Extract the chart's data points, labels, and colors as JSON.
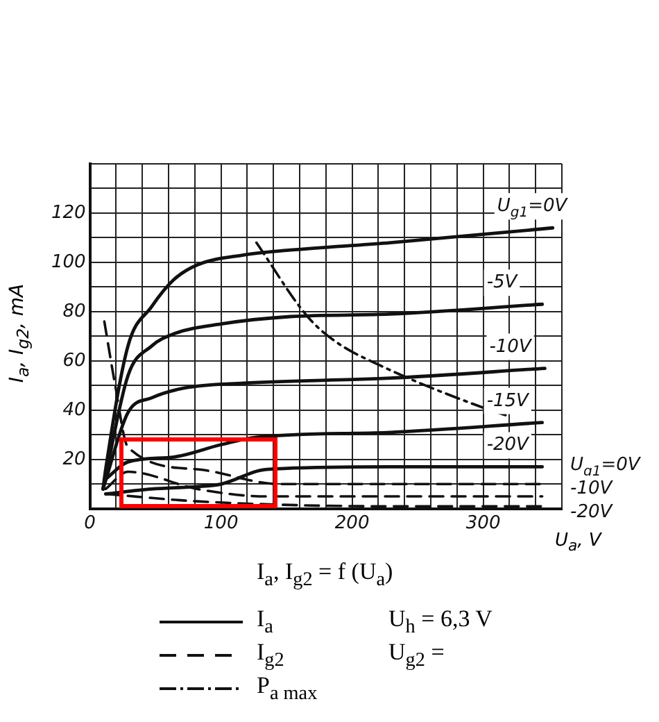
{
  "chart_data": {
    "type": "line",
    "xlabel": "U$_{a}$, V",
    "ylabel": "I$_{a}$, I$_{g2}$, mA",
    "xlim": [
      0,
      360
    ],
    "ylim": [
      0,
      140
    ],
    "xticks": [
      0,
      {
        "value": 20,
        "label": null
      },
      {
        "value": 40,
        "label": null
      },
      {
        "value": 60,
        "label": null
      },
      {
        "value": 80,
        "label": null
      },
      100,
      {
        "value": 120,
        "label": null
      },
      {
        "value": 140,
        "label": null
      },
      {
        "value": 160,
        "label": null
      },
      {
        "value": 180,
        "label": null
      },
      200,
      {
        "value": 220,
        "label": null
      },
      {
        "value": 240,
        "label": null
      },
      {
        "value": 260,
        "label": null
      },
      {
        "value": 280,
        "label": null
      },
      300,
      {
        "value": 320,
        "label": null
      },
      {
        "value": 340,
        "label": null
      },
      {
        "value": 360,
        "label": null
      }
    ],
    "yticks": [
      {
        "value": 0,
        "label": null
      },
      {
        "value": 10,
        "label": null
      },
      20,
      {
        "value": 30,
        "label": null
      },
      40,
      {
        "value": 50,
        "label": null
      },
      60,
      {
        "value": 70,
        "label": null
      },
      80,
      {
        "value": 90,
        "label": null
      },
      100,
      {
        "value": 110,
        "label": null
      },
      120,
      {
        "value": 130,
        "label": null
      },
      {
        "value": 140,
        "label": null
      }
    ],
    "grid": true,
    "legend": false,
    "marker": "none",
    "series": [
      {
        "name": "U$_{g1}$=0V",
        "color": "#111111",
        "line_style": "solid",
        "x": [
          10,
          12,
          29,
          47,
          64,
          82,
          117,
          153,
          229,
          353
        ],
        "values": [
          8,
          16,
          66,
          82,
          93,
          99,
          103,
          105,
          108,
          114
        ]
      },
      {
        "name": "-5V",
        "color": "#111111",
        "line_style": "solid",
        "x": [
          10,
          29,
          47,
          64,
          100,
          153,
          229,
          345
        ],
        "values": [
          8,
          54,
          66,
          71,
          75,
          78,
          79,
          83
        ]
      },
      {
        "name": "-10V",
        "color": "#111111",
        "line_style": "solid",
        "x": [
          10,
          29,
          47,
          72,
          117,
          229,
          347
        ],
        "values": [
          8,
          39,
          45,
          49,
          51,
          53,
          57
        ]
      },
      {
        "name": "-15V",
        "color": "#111111",
        "line_style": "solid",
        "x": [
          12,
          29,
          64,
          100,
          127,
          229,
          345
        ],
        "values": [
          12,
          19,
          21,
          26,
          29,
          31,
          35
        ]
      },
      {
        "name": "-20V",
        "color": "#111111",
        "line_style": "solid",
        "x": [
          12,
          47,
          82,
          100,
          135,
          229,
          345
        ],
        "values": [
          6,
          8,
          9,
          10,
          16,
          17,
          17
        ]
      },
      {
        "name": "U$_{g1}$=0V",
        "color": "#111111",
        "line_style": "dashed",
        "x": [
          11,
          19,
          29,
          82,
          145,
          229,
          345
        ],
        "values": [
          76,
          51,
          25,
          16,
          10,
          10,
          10
        ]
      },
      {
        "name": "-10V",
        "color": "#111111",
        "line_style": "dashed",
        "x": [
          12,
          29,
          82,
          135,
          229,
          345
        ],
        "values": [
          8,
          15,
          8,
          5,
          5,
          5
        ]
      },
      {
        "name": "-20V",
        "color": "#111111",
        "line_style": "dashed",
        "x": [
          12,
          82,
          229,
          345
        ],
        "values": [
          6,
          3,
          1,
          1
        ]
      },
      {
        "color": "#111111",
        "line_style": "dashdot",
        "x": [
          127,
          166,
          187,
          222,
          300,
          317
        ],
        "values": [
          108,
          78,
          68,
          58,
          41,
          38
        ]
      }
    ],
    "annotations": [
      "I$_{a}$,  I$_{g2}$ = f (U$_{a}$)",
      "I$_{a}$",
      "I$_{g2}$",
      "P$_{a max}$",
      "U$_{h}$ = 6,3 V",
      "U$_{g2}$ ="
    ]
  }
}
